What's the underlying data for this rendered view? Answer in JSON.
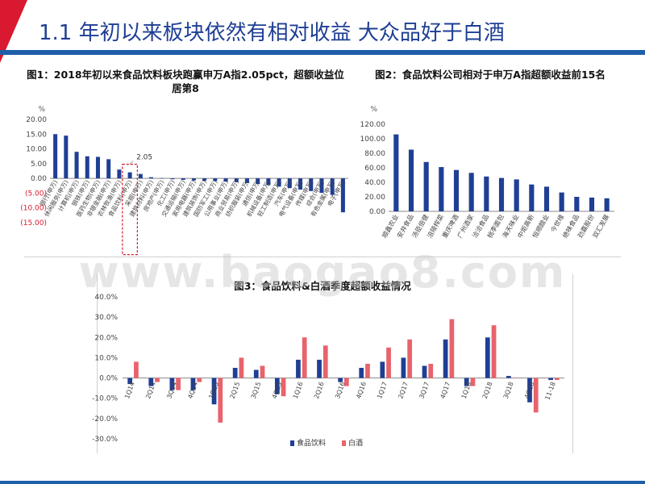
{
  "slide": {
    "title": "1.1 年初以来板块依然有相对收益 大众品好于白酒",
    "watermark": "www.baogao8.com",
    "colors": {
      "accent": "#d8192f",
      "brand": "#1f5ea8",
      "bar_blue": "#1f3f95",
      "bar_red": "#e8636c"
    }
  },
  "chart_data": [
    {
      "id": "fig1",
      "type": "bar",
      "title": "图1：2018年初以来食品饮料板块跑赢申万A指2.05pct，超额收益位居第8",
      "ylabel": "%",
      "ylim": [
        -15,
        20
      ],
      "yticks": [
        20,
        15,
        10,
        5,
        0,
        -5,
        -10,
        -15
      ],
      "ytick_labels": [
        "20.00",
        "15.00",
        "10.00",
        "5.00",
        "0.00",
        "(5.00)",
        "(10.00)",
        "(15.00)"
      ],
      "categories": [
        "银行(申万)",
        "休闲服务(申万)",
        "计算机(申万)",
        "钢铁(申万)",
        "医药生物(申万)",
        "非银金融(申万)",
        "农林牧渔(申万)",
        "食品饮料(申万)",
        "采掘(申万)",
        "建筑材料(申万)",
        "房地产(申万)",
        "化工(申万)",
        "交通运输(申万)",
        "家用电器(申万)",
        "建筑装饰(申万)",
        "国防军工(申万)",
        "公用事业(申万)",
        "商业贸易(申万)",
        "纺织服装(申万)",
        "通信(申万)",
        "机械设备(申万)",
        "轻工制造(申万)",
        "汽车(申万)",
        "电气设备(申万)",
        "传媒(申万)",
        "综合(申万)",
        "有色金属(申万)",
        "电子(申万)"
      ],
      "values": [
        15.0,
        14.5,
        9.0,
        7.5,
        7.3,
        6.5,
        3.0,
        2.05,
        1.5,
        0.4,
        0.1,
        -0.3,
        -0.5,
        -0.7,
        -0.8,
        -0.9,
        -1.1,
        -1.3,
        -1.6,
        -1.9,
        -2.3,
        -2.8,
        -3.3,
        -3.8,
        -4.3,
        -4.9,
        -5.6,
        -11.5
      ],
      "annotation": "2.05",
      "highlight_category": "食品饮料(申万)"
    },
    {
      "id": "fig2",
      "type": "bar",
      "title": "图2：食品饮料公司相对于申万A指超额收益前15名",
      "ylabel": "%",
      "ylim": [
        0,
        120
      ],
      "yticks": [
        0,
        20,
        40,
        60,
        80,
        100,
        120
      ],
      "ytick_labels": [
        "0.00",
        "20.00",
        "40.00",
        "60.00",
        "80.00",
        "100.00",
        "120.00"
      ],
      "categories": [
        "顺鑫农业",
        "安井食品",
        "汤臣倍健",
        "涪陵榨菜",
        "重庆啤酒",
        "广州酒家",
        "洽洽食品",
        "桃李面包",
        "海天味业",
        "中炬高新",
        "恒顺醋业",
        "今世缘",
        "绝味食品",
        "劲嘉股份",
        "双汇发展"
      ],
      "values": [
        106,
        85,
        68,
        61,
        57,
        53,
        48,
        46,
        44,
        37,
        34,
        26,
        20,
        19,
        18
      ]
    },
    {
      "id": "fig3",
      "type": "bar",
      "title": "图3：食品饮料&白酒季度超额收益情况",
      "ylim": [
        -30,
        40
      ],
      "yticks": [
        40,
        30,
        20,
        10,
        0,
        -10,
        -20,
        -30
      ],
      "ytick_labels": [
        "40.0%",
        "30.0%",
        "20.0%",
        "10.0%",
        "0.0%",
        "-10.0%",
        "-20.0%",
        "-30.0%"
      ],
      "categories": [
        "1Q14",
        "2Q14",
        "3Q14",
        "4Q14",
        "1Q15",
        "2Q15",
        "3Q15",
        "4Q15",
        "1Q16",
        "2Q16",
        "3Q16",
        "4Q16",
        "1Q17",
        "2Q17",
        "3Q17",
        "4Q17",
        "1Q18",
        "2Q18",
        "3Q18",
        "4Q18",
        "11-18"
      ],
      "series": [
        {
          "name": "食品饮料",
          "values": [
            -3,
            -4,
            -6,
            -6,
            -13,
            5,
            4,
            -8,
            9,
            9,
            -2,
            5,
            8,
            10,
            6,
            19,
            -4,
            20,
            1,
            -12,
            -1
          ]
        },
        {
          "name": "白酒",
          "values": [
            8,
            -2,
            -6,
            -2,
            -22,
            10,
            6,
            -9,
            20,
            16,
            -4,
            7,
            15,
            19,
            7,
            29,
            -4,
            26,
            0,
            -17,
            -1
          ]
        }
      ],
      "legend_position": "bottom-right"
    }
  ]
}
